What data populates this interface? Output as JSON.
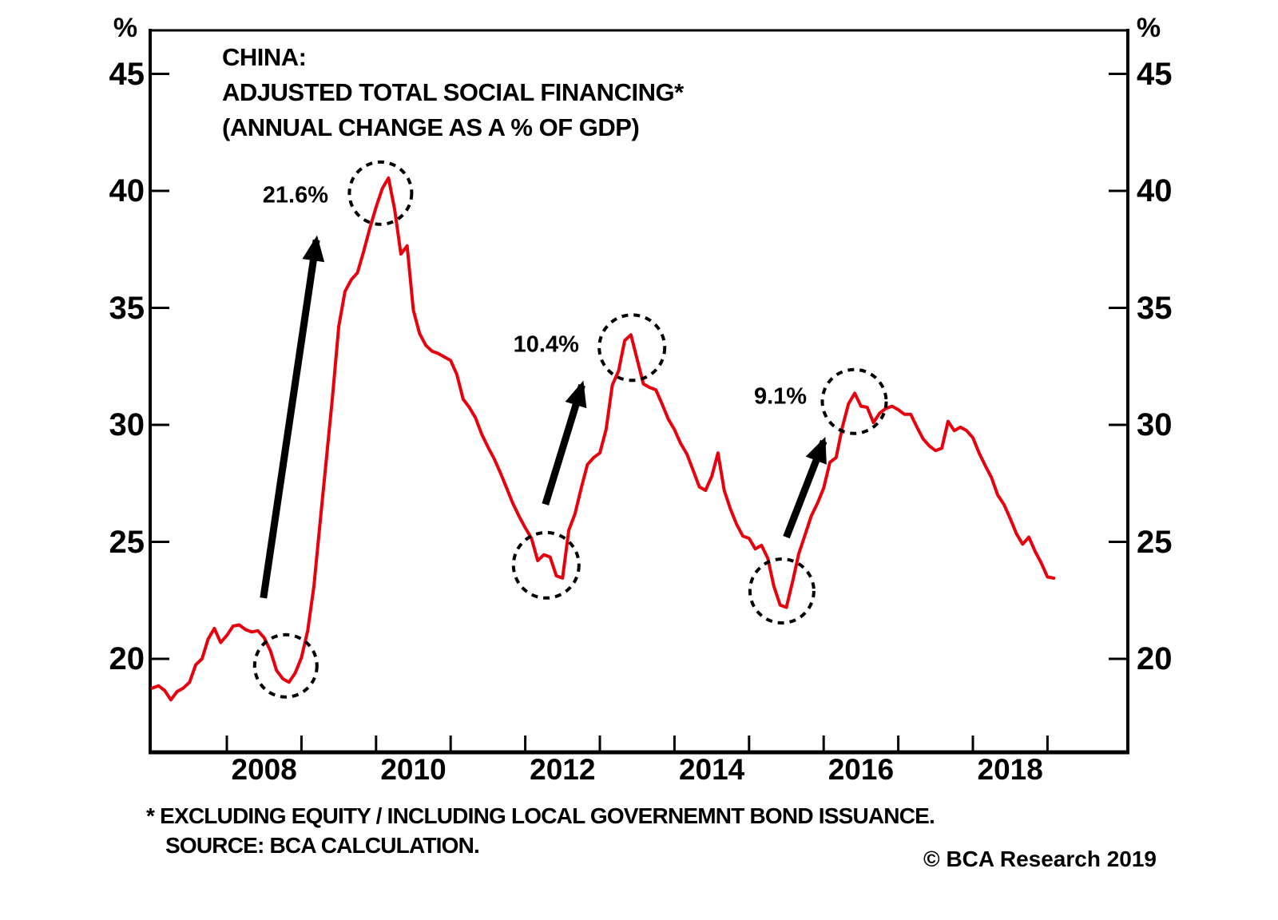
{
  "chart": {
    "title_line1": "CHINA:",
    "title_line2": "ADJUSTED TOTAL SOCIAL FINANCING*",
    "title_line3": "(ANNUAL CHANGE AS A % OF GDP)",
    "unit_left": "%",
    "unit_right": "%",
    "footnote_line1": "* EXCLUDING EQUITY / INCLUDING LOCAL GOVERNEMNT BOND ISSUANCE.",
    "footnote_line2": "SOURCE: BCA CALCULATION.",
    "copyright": "© BCA Research 2019"
  },
  "chart_data": {
    "type": "line",
    "title": "CHINA: ADJUSTED TOTAL SOCIAL FINANCING* (ANNUAL CHANGE AS A % OF GDP)",
    "unit": "%",
    "grid": false,
    "colors": {
      "series": "#e8000d",
      "axis": "#000000",
      "annotation": "#000000"
    },
    "y_axis": {
      "ticks": [
        45,
        40,
        35,
        30,
        25,
        20
      ],
      "range": [
        16,
        46.9
      ],
      "side": "both"
    },
    "x_axis": {
      "tick_years": [
        2008,
        2009,
        2010,
        2011,
        2012,
        2013,
        2014,
        2015,
        2016,
        2017,
        2018,
        2019
      ],
      "label_years": [
        2008,
        2010,
        2012,
        2014,
        2016,
        2018
      ],
      "range": [
        2006.97,
        2020.08
      ]
    },
    "series": [
      {
        "name": "Adjusted total social financing, annual change as a % of GDP",
        "color": "#e8000d",
        "start_year": 2007.0,
        "interval_months": 1,
        "values": [
          18.75,
          18.85,
          18.65,
          18.25,
          18.6,
          18.75,
          19.0,
          19.75,
          20.0,
          20.85,
          21.3,
          20.7,
          21.0,
          21.4,
          21.45,
          21.25,
          21.15,
          21.2,
          20.9,
          20.35,
          19.5,
          19.15,
          19.0,
          19.4,
          20.05,
          21.2,
          23.1,
          25.85,
          28.5,
          31.2,
          34.2,
          35.7,
          36.2,
          36.5,
          37.4,
          38.4,
          39.3,
          40.1,
          40.55,
          39.2,
          37.3,
          37.65,
          34.9,
          33.9,
          33.4,
          33.15,
          33.05,
          32.9,
          32.75,
          32.15,
          31.1,
          30.75,
          30.3,
          29.6,
          29.05,
          28.55,
          27.95,
          27.3,
          26.65,
          26.1,
          25.6,
          25.15,
          24.2,
          24.45,
          24.35,
          23.55,
          23.45,
          25.5,
          26.2,
          27.3,
          28.3,
          28.6,
          28.8,
          29.8,
          31.7,
          32.3,
          33.6,
          33.85,
          32.8,
          31.75,
          31.6,
          31.5,
          30.9,
          30.25,
          29.8,
          29.2,
          28.75,
          28.05,
          27.35,
          27.2,
          27.8,
          28.8,
          27.2,
          26.4,
          25.75,
          25.25,
          25.15,
          24.7,
          24.85,
          24.3,
          23.1,
          22.3,
          22.2,
          23.3,
          24.5,
          25.3,
          26.1,
          26.65,
          27.3,
          28.4,
          28.6,
          29.9,
          30.9,
          31.35,
          30.8,
          30.75,
          30.1,
          30.5,
          30.7,
          30.8,
          30.65,
          30.45,
          30.45,
          29.9,
          29.4,
          29.1,
          28.9,
          29.0,
          30.15,
          29.75,
          29.9,
          29.75,
          29.45,
          28.8,
          28.25,
          27.75,
          27.0,
          26.6,
          26.0,
          25.35,
          24.9,
          25.2,
          24.6,
          24.1,
          23.5,
          23.45
        ]
      }
    ],
    "annotations": [
      {
        "label": "21.6%",
        "label_at": [
          2008.92,
          39.8
        ],
        "arrow_from": [
          2008.49,
          22.6
        ],
        "arrow_to": [
          2009.2,
          37.9
        ],
        "trough_circle": {
          "at": [
            2008.79,
            19.7
          ],
          "r": 39
        },
        "peak_circle": {
          "at": [
            2010.06,
            39.9
          ],
          "r": 39
        }
      },
      {
        "label": "10.4%",
        "label_at": [
          2012.28,
          33.4
        ],
        "arrow_from": [
          2012.27,
          26.6
        ],
        "arrow_to": [
          2012.76,
          31.7
        ],
        "trough_circle": {
          "at": [
            2012.28,
            24.0
          ],
          "r": 41
        },
        "peak_circle": {
          "at": [
            2013.43,
            33.3
          ],
          "r": 41
        }
      },
      {
        "label": "9.1%",
        "label_at": [
          2015.42,
          31.2
        ],
        "arrow_from": [
          2015.5,
          25.2
        ],
        "arrow_to": [
          2016.0,
          29.3
        ],
        "trough_circle": {
          "at": [
            2015.44,
            22.9
          ],
          "r": 40
        },
        "peak_circle": {
          "at": [
            2016.41,
            31.0
          ],
          "r": 40
        }
      }
    ]
  }
}
